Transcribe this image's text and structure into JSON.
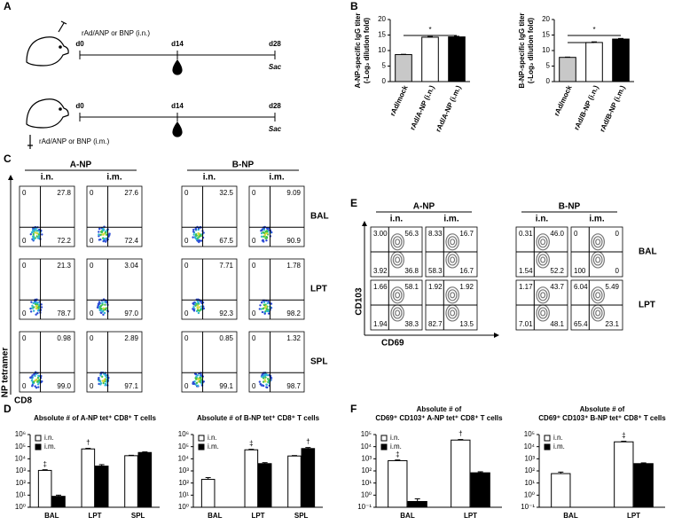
{
  "panels": [
    "A",
    "B",
    "C",
    "D",
    "E",
    "F"
  ],
  "schematic": {
    "rows": [
      {
        "route": "rAd/ANP or BNP (i.n.)",
        "days": [
          "d0",
          "d14",
          "d28"
        ],
        "end": "Sac"
      },
      {
        "route": "rAd/ANP or BNP (i.m.)",
        "days": [
          "d0",
          "d14",
          "d28"
        ],
        "end": "Sac"
      }
    ]
  },
  "flow_c": {
    "groups": [
      "A-NP",
      "B-NP"
    ],
    "routes": [
      "i.n.",
      "i.m."
    ],
    "rows": [
      "BAL",
      "LPT",
      "SPL"
    ],
    "y_label": "NP tetramer",
    "x_label": "CD8",
    "quadrants": [
      [
        [
          "0",
          "27.8",
          "0",
          "72.2"
        ],
        [
          "0",
          "27.6",
          "0",
          "72.4"
        ],
        [
          "0",
          "32.5",
          "0",
          "67.5"
        ],
        [
          "0",
          "9.09",
          "0",
          "90.9"
        ]
      ],
      [
        [
          "0",
          "21.3",
          "0",
          "78.7"
        ],
        [
          "0",
          "3.04",
          "0",
          "97.0"
        ],
        [
          "0",
          "7.71",
          "0",
          "92.3"
        ],
        [
          "0",
          "1.78",
          "0",
          "98.2"
        ]
      ],
      [
        [
          "0",
          "0.98",
          "0",
          "99.0"
        ],
        [
          "0",
          "2.89",
          "0",
          "97.1"
        ],
        [
          "0",
          "0.85",
          "0",
          "99.1"
        ],
        [
          "0",
          "1.32",
          "0",
          "98.7"
        ]
      ]
    ]
  },
  "flow_e": {
    "groups": [
      "A-NP",
      "B-NP"
    ],
    "routes": [
      "i.n.",
      "i.m."
    ],
    "rows": [
      "BAL",
      "LPT"
    ],
    "y_label": "CD103",
    "x_label": "CD69",
    "quadrants": [
      [
        [
          "3.00",
          "56.3",
          "3.92",
          "36.8"
        ],
        [
          "8.33",
          "16.7",
          "58.3",
          "16.7"
        ],
        [
          "0.31",
          "46.0",
          "1.54",
          "52.2"
        ],
        [
          "0",
          "0",
          "100",
          "0"
        ]
      ],
      [
        [
          "1.66",
          "58.1",
          "1.94",
          "38.3"
        ],
        [
          "1.92",
          "1.92",
          "82.7",
          "13.5"
        ],
        [
          "1.17",
          "43.7",
          "7.01",
          "48.1"
        ],
        [
          "6.04",
          "5.49",
          "65.4",
          "23.1"
        ]
      ]
    ]
  },
  "chart_data": [
    {
      "type": "bar",
      "ylabel": [
        "A-NP-specific IgG titer",
        "(-Log₂ dilution fold)"
      ],
      "categories": [
        "rAd/mock",
        "rAd/A-NP (i.n.)",
        "rAd/A-NP (i.m.)"
      ],
      "values": [
        8.7,
        14.3,
        14.4
      ],
      "errors": [
        0.1,
        0.2,
        0.2
      ],
      "colors": [
        "#c8c8c8",
        "#ffffff",
        "#000000"
      ],
      "ylim": [
        0,
        20
      ],
      "yticks": [
        0,
        5,
        10,
        15,
        20
      ],
      "significance": {
        "label": "*",
        "spans": [
          [
            0,
            2
          ]
        ]
      }
    },
    {
      "type": "bar",
      "ylabel": [
        "B-NP-specific IgG titer",
        "(-Log₂ dilution fold)"
      ],
      "categories": [
        "rAd/mock",
        "rAd/B-NP (i.n.)",
        "rAd/B-NP (i.m.)"
      ],
      "values": [
        7.8,
        12.6,
        13.7
      ],
      "errors": [
        0.1,
        0.2,
        0.2
      ],
      "colors": [
        "#c8c8c8",
        "#ffffff",
        "#000000"
      ],
      "ylim": [
        0,
        20
      ],
      "yticks": [
        0,
        5,
        10,
        15,
        20
      ],
      "significance": {
        "label": "*",
        "spans": [
          [
            0,
            2
          ],
          [
            0,
            1
          ]
        ]
      }
    },
    {
      "type": "bar",
      "title": "Absolute # of A-NP tet⁺ CD8⁺ T cells",
      "categories": [
        "BAL",
        "LPT",
        "SPL"
      ],
      "log_scale": true,
      "series": [
        {
          "name": "i.n.",
          "color": "#ffffff",
          "values": [
            1100,
            65000,
            18000
          ],
          "errors": [
            150,
            8000,
            1500
          ]
        },
        {
          "name": "i.m.",
          "color": "#000000",
          "values": [
            8,
            2500,
            33000
          ],
          "errors": [
            2,
            800,
            4000
          ]
        }
      ],
      "ylim": [
        1,
        1000000
      ],
      "yticks": [
        {
          "value": 1,
          "label": "10⁰"
        },
        {
          "value": 10,
          "label": "10¹"
        },
        {
          "value": 100,
          "label": "10²"
        },
        {
          "value": 1000,
          "label": "10³"
        },
        {
          "value": 10000,
          "label": "10⁴"
        },
        {
          "value": 100000,
          "label": "10⁵"
        },
        {
          "value": 1000000,
          "label": "10⁶"
        }
      ],
      "annotations": [
        {
          "text": "‡",
          "series": 0,
          "category": 0
        },
        {
          "text": "†",
          "series": 0,
          "category": 1
        }
      ]
    },
    {
      "type": "bar",
      "title": "Absolute # of B-NP tet⁺ CD8⁺ T cells",
      "categories": [
        "BAL",
        "LPT",
        "SPL"
      ],
      "log_scale": true,
      "series": [
        {
          "name": "i.n.",
          "color": "#ffffff",
          "values": [
            200,
            55000,
            17000
          ],
          "errors": [
            80,
            6000,
            1500
          ]
        },
        {
          "name": "i.m.",
          "color": "#000000",
          "values": [
            null,
            4000,
            70000
          ],
          "errors": [
            null,
            800,
            15000
          ]
        }
      ],
      "ylim": [
        1,
        1000000
      ],
      "yticks": [
        {
          "value": 1,
          "label": "10⁰"
        },
        {
          "value": 10,
          "label": "10¹"
        },
        {
          "value": 100,
          "label": "10²"
        },
        {
          "value": 1000,
          "label": "10³"
        },
        {
          "value": 10000,
          "label": "10⁴"
        },
        {
          "value": 100000,
          "label": "10⁵"
        },
        {
          "value": 1000000,
          "label": "10⁶"
        }
      ],
      "annotations": [
        {
          "text": "‡",
          "series": 0,
          "category": 1
        },
        {
          "text": "†",
          "series": 1,
          "category": 2
        }
      ]
    },
    {
      "type": "bar",
      "title": "Absolute # of",
      "subtitle": "CD69⁺ CD103⁺ A-NP tet⁺ CD8⁺ T cells",
      "categories": [
        "BAL",
        "LPT"
      ],
      "log_scale": true,
      "series": [
        {
          "name": "i.n.",
          "color": "#ffffff",
          "values": [
            700,
            35000
          ],
          "errors": [
            100,
            4000
          ]
        },
        {
          "name": "i.m.",
          "color": "#000000",
          "values": [
            0.3,
            70
          ],
          "errors": [
            0.2,
            15
          ]
        }
      ],
      "ylim": [
        0.1,
        100000
      ],
      "yticks": [
        {
          "value": 0.1,
          "label": "10⁻¹"
        },
        {
          "value": 1,
          "label": "10⁰"
        },
        {
          "value": 10,
          "label": "10¹"
        },
        {
          "value": 100,
          "label": "10²"
        },
        {
          "value": 1000,
          "label": "10³"
        },
        {
          "value": 10000,
          "label": "10⁴"
        },
        {
          "value": 100000,
          "label": "10⁵"
        }
      ],
      "annotations": [
        {
          "text": "‡",
          "series": 0,
          "category": 0
        },
        {
          "text": "†",
          "series": 0,
          "category": 1
        }
      ]
    },
    {
      "type": "bar",
      "title": "Absolute # of",
      "subtitle": "CD69⁺ CD103⁺ B-NP tet⁺ CD8⁺ T cells",
      "categories": [
        "BAL",
        "LPT"
      ],
      "log_scale": true,
      "series": [
        {
          "name": "i.n.",
          "color": "#ffffff",
          "values": [
            60,
            25000
          ],
          "errors": [
            20,
            3000
          ]
        },
        {
          "name": "i.m.",
          "color": "#000000",
          "values": [
            null,
            400
          ],
          "errors": [
            null,
            60
          ]
        }
      ],
      "ylim": [
        0.1,
        100000
      ],
      "yticks": [
        {
          "value": 0.1,
          "label": "10⁻¹"
        },
        {
          "value": 1,
          "label": "10⁰"
        },
        {
          "value": 10,
          "label": "10¹"
        },
        {
          "value": 100,
          "label": "10²"
        },
        {
          "value": 1000,
          "label": "10³"
        },
        {
          "value": 10000,
          "label": "10⁴"
        },
        {
          "value": 100000,
          "label": "10⁵"
        }
      ],
      "annotations": [
        {
          "text": "‡",
          "series": 0,
          "category": 1
        }
      ]
    }
  ]
}
